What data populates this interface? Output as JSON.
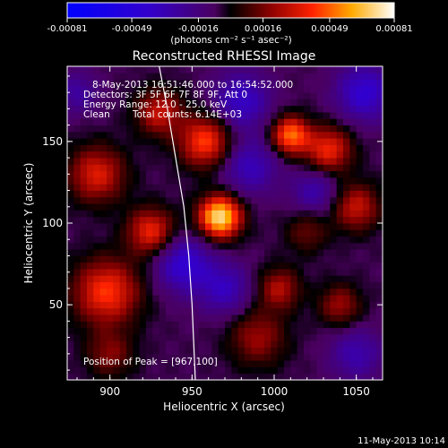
{
  "chart_data": {
    "type": "heatmap",
    "title": "Reconstructed RHESSI Image",
    "xlabel": "Heliocentric X (arcsec)",
    "ylabel": "Heliocentric Y (arcsec)",
    "xlim": [
      874,
      1066
    ],
    "ylim": [
      4,
      196
    ],
    "xticks": [
      900,
      950,
      1000,
      1050
    ],
    "yticks": [
      50,
      100,
      150
    ],
    "colorbar": {
      "unit_label": "(photons cm⁻² s⁻¹ asec⁻²)",
      "min": -0.00081,
      "max": 0.00081,
      "tick_values": [
        -0.00081,
        -0.00049,
        -0.00016,
        0.00016,
        0.00049,
        0.00081
      ],
      "tick_labels": [
        "-0.00081",
        "-0.00049",
        "-0.00016",
        "0.00016",
        "0.00049",
        "0.00081"
      ]
    },
    "annotations": {
      "time_range": "8-May-2013 16:51:46.000 to 16:54:52.000",
      "detectors": "Detectors: 3F 5F 6F 7F 8F 9F, Att 0",
      "energy": "Energy Range: 12.0 - 25.0 keV",
      "clean": "Clean",
      "counts": "Total counts: 6.14E+03",
      "peak": "Position of Peak = [967,100]"
    },
    "peak_position": [
      967,
      100
    ],
    "limb_curve": [
      [
        930,
        196
      ],
      [
        935,
        170
      ],
      [
        940,
        140
      ],
      [
        945,
        110
      ],
      [
        948,
        80
      ],
      [
        950,
        50
      ],
      [
        952,
        4
      ]
    ],
    "sources": [
      {
        "x": 967,
        "y": 104,
        "amplitude": 1.0,
        "width": 9
      },
      {
        "x": 958,
        "y": 150,
        "amplitude": 0.62,
        "width": 11
      },
      {
        "x": 1010,
        "y": 154,
        "amplitude": 0.72,
        "width": 8
      },
      {
        "x": 1033,
        "y": 145,
        "amplitude": 0.55,
        "width": 10
      },
      {
        "x": 1050,
        "y": 110,
        "amplitude": 0.45,
        "width": 10
      },
      {
        "x": 898,
        "y": 58,
        "amplitude": 0.6,
        "width": 14
      },
      {
        "x": 925,
        "y": 95,
        "amplitude": 0.55,
        "width": 10
      },
      {
        "x": 892,
        "y": 130,
        "amplitude": 0.5,
        "width": 12
      },
      {
        "x": 930,
        "y": 168,
        "amplitude": 0.45,
        "width": 10
      },
      {
        "x": 1003,
        "y": 60,
        "amplitude": 0.4,
        "width": 9
      },
      {
        "x": 1040,
        "y": 50,
        "amplitude": 0.35,
        "width": 9
      },
      {
        "x": 990,
        "y": 30,
        "amplitude": 0.35,
        "width": 12
      },
      {
        "x": 900,
        "y": 20,
        "amplitude": 0.3,
        "width": 10
      },
      {
        "x": 1020,
        "y": 95,
        "amplitude": 0.25,
        "width": 9
      },
      {
        "x": 945,
        "y": 75,
        "amplitude": -0.45,
        "width": 12
      },
      {
        "x": 985,
        "y": 135,
        "amplitude": -0.35,
        "width": 12
      },
      {
        "x": 980,
        "y": 175,
        "amplitude": -0.4,
        "width": 12
      },
      {
        "x": 1055,
        "y": 180,
        "amplitude": -0.45,
        "width": 12
      },
      {
        "x": 970,
        "y": 60,
        "amplitude": -0.35,
        "width": 11
      },
      {
        "x": 1050,
        "y": 20,
        "amplitude": -0.3,
        "width": 11
      },
      {
        "x": 880,
        "y": 180,
        "amplitude": -0.25,
        "width": 9
      },
      {
        "x": 1025,
        "y": 120,
        "amplitude": -0.3,
        "width": 10
      }
    ]
  },
  "footer": {
    "date": "11-May-2013 10:14"
  }
}
